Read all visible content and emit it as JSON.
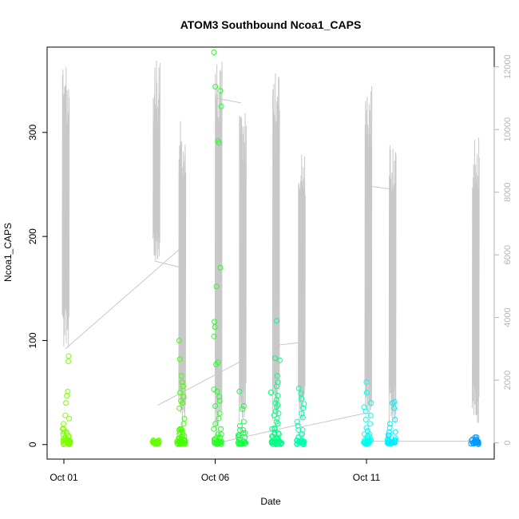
{
  "chart_data": {
    "type": "scatter",
    "title": "ATOM3 Southbound Ncoa1_CAPS",
    "xlabel": "Date",
    "ylabel": "Ncoa1_CAPS",
    "x_ticks": [
      "Oct 01",
      "Oct 06",
      "Oct 11"
    ],
    "y_ticks": [
      0,
      100,
      200,
      300
    ],
    "y2_ticks": [
      0,
      2000,
      4000,
      6000,
      8000,
      10000,
      12000
    ],
    "x_range_days": [
      0.0,
      13.9
    ],
    "ylim": [
      -14,
      382
    ],
    "y2lim": [
      -520,
      12630
    ],
    "colors": {
      "line": "#c8c8c8",
      "axis": "#000000",
      "right_axis": "#b4b4b4",
      "points_start": "#66ff00",
      "points_mid": "#00ff88",
      "points_end": "#0088ff"
    },
    "series": [
      {
        "type": "points",
        "clusters": [
          {
            "date": "Oct 01",
            "day": 0.05,
            "color": "#7dff00",
            "outliers": [
              85,
              80,
              51,
              47,
              40,
              28,
              25,
              20,
              15,
              12,
              10,
              8,
              6,
              4,
              3,
              2,
              1,
              0
            ]
          },
          {
            "date": "Oct 03",
            "day": 3.0,
            "color": "#66ff00",
            "outliers": [
              4,
              2,
              1,
              0
            ]
          },
          {
            "date": "Oct 04",
            "day": 3.85,
            "color": "#44ff00",
            "outliers": [
              100,
              82,
              66,
              60,
              56,
              50,
              46,
              42,
              40,
              35,
              25,
              20,
              15,
              14,
              12,
              10,
              8,
              6,
              5,
              4,
              3,
              2,
              1,
              0
            ]
          },
          {
            "date": "Oct 06",
            "day": 5.05,
            "color": "#22ff22",
            "outliers": [
              377,
              344,
              340,
              325,
              292,
              290,
              170,
              152,
              118,
              113,
              104,
              79,
              77,
              53,
              51,
              46,
              42,
              37,
              30,
              25,
              20,
              15,
              10,
              7,
              5,
              3,
              1,
              0
            ]
          },
          {
            "date": "Oct 07",
            "day": 5.85,
            "color": "#11ff44",
            "outliers": [
              51,
              37,
              34,
              22,
              18,
              14,
              11,
              9,
              7,
              5,
              3,
              1,
              0
            ]
          },
          {
            "date": "Oct 08",
            "day": 6.95,
            "color": "#00ff77",
            "outliers": [
              83,
              66,
              56,
              50,
              47,
              43,
              38,
              36,
              32,
              28,
              25,
              20,
              15,
              11,
              8,
              5,
              3,
              1,
              0
            ]
          },
          {
            "date": "Oct 08b",
            "day": 7.05,
            "color": "#00ff88",
            "outliers": [
              119,
              81,
              60,
              40,
              30,
              22,
              16,
              10,
              6,
              3,
              1,
              0
            ]
          },
          {
            "date": "Oct 09",
            "day": 7.8,
            "color": "#00ffaa",
            "outliers": [
              54,
              49,
              44,
              39,
              35,
              30,
              26,
              22,
              18,
              14,
              10,
              7,
              4,
              2,
              1,
              0
            ]
          },
          {
            "date": "Oct 11",
            "day": 10.0,
            "color": "#00ffee",
            "outliers": [
              60,
              50,
              40,
              36,
              32,
              28,
              24,
              20,
              16,
              13,
              10,
              8,
              6,
              4,
              2,
              1,
              0
            ]
          },
          {
            "date": "Oct 11b",
            "day": 10.8,
            "color": "#00eeff",
            "outliers": [
              41,
              40,
              35,
              24,
              20,
              16,
              12,
              9,
              6,
              4,
              2,
              1,
              0
            ]
          },
          {
            "date": "Oct 14",
            "day": 13.55,
            "color": "#0099ff",
            "outliers": [
              7,
              5,
              4,
              3,
              2,
              1,
              0
            ]
          }
        ]
      },
      {
        "type": "line",
        "axis": "right",
        "bursts": [
          {
            "day": 0.0,
            "peak": 12000,
            "low": 3000
          },
          {
            "day": 3.0,
            "peak": 12250,
            "low": 5800
          },
          {
            "day": 3.85,
            "peak": 10300,
            "low": 500
          },
          {
            "day": 5.05,
            "peak": 12300,
            "low": 0
          },
          {
            "day": 5.85,
            "peak": 10800,
            "low": 500
          },
          {
            "day": 6.95,
            "peak": 12100,
            "low": 500
          },
          {
            "day": 7.8,
            "peak": 9500,
            "low": 500
          },
          {
            "day": 10.0,
            "peak": 11400,
            "low": 500
          },
          {
            "day": 10.8,
            "peak": 9700,
            "low": 500
          },
          {
            "day": 13.55,
            "peak": 9800,
            "low": 500
          }
        ],
        "connectors": [
          [
            0.05,
            3000,
            3.85,
            6200
          ],
          [
            3.0,
            5800,
            3.85,
            5600
          ],
          [
            3.1,
            1200,
            5.85,
            2600
          ],
          [
            5.05,
            11000,
            5.85,
            10850
          ],
          [
            5.1,
            0,
            7.85,
            600
          ],
          [
            6.9,
            3100,
            7.8,
            3200
          ],
          [
            7.8,
            500,
            10.0,
            950
          ],
          [
            10.0,
            8200,
            10.8,
            8100
          ],
          [
            10.2,
            50,
            13.5,
            50
          ]
        ]
      }
    ]
  }
}
